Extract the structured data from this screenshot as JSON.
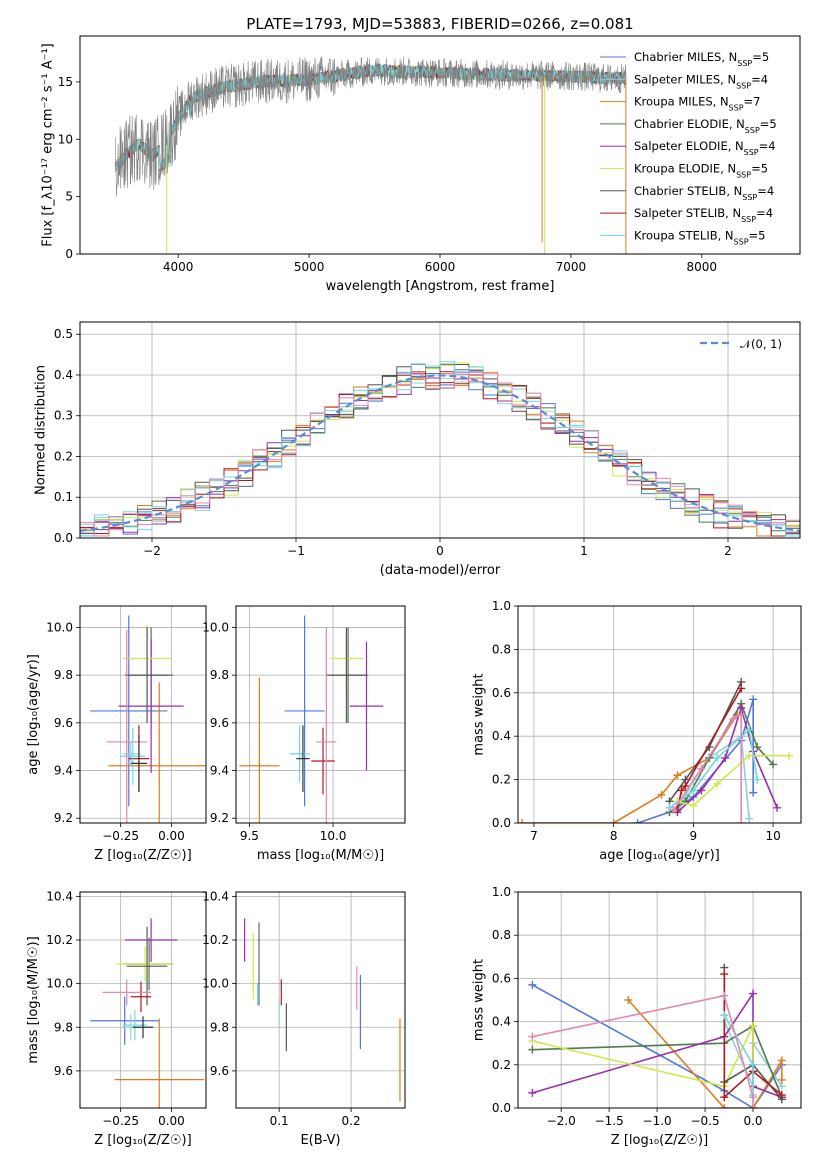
{
  "figure_title": "PLATE=1793, MJD=53883, FIBERID=0266, z=0.081",
  "colors": {
    "chabrier_miles": "#4f79d9",
    "salpeter_miles": "#8fd0d8",
    "kroupa_miles": "#e07b20",
    "chabrier_elodie": "#4f7a4f",
    "salpeter_elodie": "#9a2fae",
    "kroupa_elodie": "#cfe84a",
    "chabrier_stelib": "#555555",
    "salpeter_stelib": "#b01b1b",
    "kroupa_stelib": "#6fd8e0",
    "pink": "#e487b0",
    "data": "#808080",
    "normal": "#5b8bd4"
  },
  "chart_data": [
    {
      "type": "line",
      "name": "spectrum",
      "title": "PLATE=1793, MJD=53883, FIBERID=0266, z=0.081",
      "xlabel": "wavelength [Angstrom, rest frame]",
      "ylabel": "Flux [f_λ10⁻¹⁷ erg cm⁻² s⁻¹ A⁻¹]",
      "xlim": [
        3250,
        8750
      ],
      "ylim": [
        0,
        19
      ],
      "xticks": [
        "4000",
        "5000",
        "6000",
        "7000",
        "8000"
      ],
      "yticks": [
        "0",
        "5",
        "10",
        "15"
      ],
      "grid": false,
      "legend": "right",
      "continuum": {
        "x": [
          3520,
          3600,
          3700,
          3800,
          3900,
          4000,
          4100,
          4300,
          4600,
          5000,
          5500,
          6000,
          6500,
          7000,
          7300,
          7420
        ],
        "y": [
          7.5,
          8.6,
          9.6,
          8.6,
          9.6,
          11.8,
          13.6,
          14.4,
          15.0,
          15.2,
          16.0,
          15.8,
          15.6,
          15.5,
          15.3,
          15.3
        ]
      },
      "series": [
        {
          "name": "Chabrier MILES, N_SSP=5",
          "color": "#4f79d9"
        },
        {
          "name": "Salpeter MILES, N_SSP=4",
          "color": "#8fd0d8"
        },
        {
          "name": "Kroupa MILES, N_SSP=7",
          "color": "#e07b20"
        },
        {
          "name": "Chabrier ELODIE, N_SSP=5",
          "color": "#4f7a4f"
        },
        {
          "name": "Salpeter ELODIE, N_SSP=4",
          "color": "#9a2fae"
        },
        {
          "name": "Kroupa ELODIE, N_SSP=5",
          "color": "#cfe84a"
        },
        {
          "name": "Chabrier STELIB, N_SSP=4",
          "color": "#555555"
        },
        {
          "name": "Salpeter STELIB, N_SSP=4",
          "color": "#b01b1b"
        },
        {
          "name": "Kroupa STELIB, N_SSP=5",
          "color": "#6fd8e0"
        }
      ]
    },
    {
      "type": "line",
      "name": "residual-histogram",
      "xlabel": "(data-model)/error",
      "ylabel": "Normed distribution",
      "xlim": [
        -2.5,
        2.5
      ],
      "ylim": [
        0,
        0.53
      ],
      "xticks": [
        "−2",
        "−1",
        "0",
        "1",
        "2"
      ],
      "yticks": [
        "0.0",
        "0.1",
        "0.2",
        "0.3",
        "0.4",
        "0.5"
      ],
      "grid": true,
      "legend": "top-right",
      "legend_label": "𝒩(0, 1)",
      "bins": {
        "start": -2.5,
        "width": 0.1
      }
    },
    {
      "type": "scatter",
      "name": "age-vs-z",
      "xlabel": "Z [log₁₀(Z/Z☉)]",
      "ylabel": "age  [log₁₀(age/yr)]",
      "xlim": [
        -0.45,
        0.17
      ],
      "ylim": [
        9.18,
        10.09
      ],
      "xticks": [
        "−0.25",
        "0.00"
      ],
      "yticks": [
        "9.2",
        "9.4",
        "9.6",
        "9.8",
        "10.0"
      ],
      "grid": true,
      "points": [
        {
          "x": -0.21,
          "y": 9.65,
          "xerr": 0.19,
          "yerr": 0.4,
          "color": "#4f79d9"
        },
        {
          "x": -0.2,
          "y": 9.47,
          "xerr": 0.04,
          "yerr": 0.05,
          "color": "#8fd0d8"
        },
        {
          "x": -0.06,
          "y": 9.42,
          "xerr": 0.25,
          "yerr": 0.35,
          "color": "#e07b20"
        },
        {
          "x": -0.1,
          "y": 9.8,
          "xerr": 0.11,
          "yerr": 0.2,
          "color": "#4f7a4f"
        },
        {
          "x": -0.1,
          "y": 9.67,
          "xerr": 0.16,
          "yerr": 0.28,
          "color": "#9a2fae"
        },
        {
          "x": -0.12,
          "y": 9.87,
          "xerr": 0.12,
          "yerr": 0.14,
          "color": "#cfe84a"
        },
        {
          "x": -0.12,
          "y": 9.8,
          "xerr": 0.11,
          "yerr": 0.2,
          "color": "#555555"
        },
        {
          "x": -0.16,
          "y": 9.45,
          "xerr": 0.05,
          "yerr": 0.14,
          "color": "#b01b1b"
        },
        {
          "x": -0.19,
          "y": 9.46,
          "xerr": 0.06,
          "yerr": 0.12,
          "color": "#6fd8e0"
        },
        {
          "x": -0.22,
          "y": 9.52,
          "xerr": 0.1,
          "yerr": 0.47,
          "color": "#e487b0"
        },
        {
          "x": -0.16,
          "y": 9.43,
          "xerr": 0.04,
          "yerr": 0.12,
          "color": "#333333"
        }
      ]
    },
    {
      "type": "scatter",
      "name": "age-vs-mass",
      "xlabel": "mass [log₁₀(M/M☉)]",
      "ylabel": "",
      "xlim": [
        9.42,
        10.43
      ],
      "ylim": [
        9.18,
        10.09
      ],
      "xticks": [
        "9.5",
        "10.0"
      ],
      "yticks": [
        "9.2",
        "9.4",
        "9.6",
        "9.8",
        "10.0"
      ],
      "grid": true,
      "points": [
        {
          "x": 9.83,
          "y": 9.65,
          "xerr": 0.12,
          "yerr": 0.4,
          "color": "#4f79d9"
        },
        {
          "x": 9.8,
          "y": 9.47,
          "xerr": 0.06,
          "yerr": 0.05,
          "color": "#8fd0d8"
        },
        {
          "x": 9.56,
          "y": 9.42,
          "xerr": 0.12,
          "yerr": 0.37,
          "color": "#e07b20"
        },
        {
          "x": 10.09,
          "y": 9.8,
          "xerr": 0.12,
          "yerr": 0.2,
          "color": "#4f7a4f"
        },
        {
          "x": 10.2,
          "y": 9.67,
          "xerr": 0.1,
          "yerr": 0.27,
          "color": "#9a2fae"
        },
        {
          "x": 10.08,
          "y": 9.87,
          "xerr": 0.1,
          "yerr": 0.13,
          "color": "#cfe84a"
        },
        {
          "x": 10.08,
          "y": 9.8,
          "xerr": 0.12,
          "yerr": 0.2,
          "color": "#555555"
        },
        {
          "x": 9.94,
          "y": 9.44,
          "xerr": 0.07,
          "yerr": 0.14,
          "color": "#b01b1b"
        },
        {
          "x": 9.8,
          "y": 9.47,
          "xerr": 0.05,
          "yerr": 0.12,
          "color": "#6fd8e0"
        },
        {
          "x": 9.96,
          "y": 9.52,
          "xerr": 0.06,
          "yerr": 0.48,
          "color": "#e487b0"
        },
        {
          "x": 9.82,
          "y": 9.45,
          "xerr": 0.04,
          "yerr": 0.14,
          "color": "#333333"
        }
      ]
    },
    {
      "type": "line",
      "name": "mass-weight-vs-age",
      "xlabel": "age  [log₁₀(age/yr)]",
      "ylabel": "mass weight",
      "xlim": [
        6.8,
        10.35
      ],
      "ylim": [
        0,
        1
      ],
      "xticks": [
        "7",
        "8",
        "9",
        "10"
      ],
      "yticks": [
        "0.0",
        "0.2",
        "0.4",
        "0.6",
        "0.8",
        "1.0"
      ],
      "grid": true,
      "series": [
        {
          "color": "#4f79d9",
          "x": [
            8.3,
            8.7,
            9.0,
            9.6,
            9.75,
            9.75
          ],
          "y": [
            0.0,
            0.05,
            0.12,
            0.38,
            0.57,
            0.14
          ]
        },
        {
          "color": "#8fd0d8",
          "x": [
            8.8,
            9.0,
            9.2,
            9.6,
            9.7
          ],
          "y": [
            0.05,
            0.2,
            0.3,
            0.4,
            0.02
          ]
        },
        {
          "color": "#e07b20",
          "x": [
            6.85,
            8.0,
            8.6,
            8.8,
            9.2,
            9.55
          ],
          "y": [
            0.0,
            0.0,
            0.13,
            0.22,
            0.3,
            0.5
          ]
        },
        {
          "color": "#4f7a4f",
          "x": [
            8.7,
            8.9,
            9.2,
            9.6,
            9.8,
            10.0
          ],
          "y": [
            0.05,
            0.1,
            0.3,
            0.55,
            0.35,
            0.27
          ]
        },
        {
          "color": "#9a2fae",
          "x": [
            8.8,
            9.1,
            9.4,
            9.6,
            9.75,
            10.05
          ],
          "y": [
            0.05,
            0.15,
            0.3,
            0.53,
            0.33,
            0.07
          ]
        },
        {
          "color": "#cfe84a",
          "x": [
            8.8,
            9.0,
            9.3,
            9.7,
            10.2
          ],
          "y": [
            0.1,
            0.08,
            0.18,
            0.31,
            0.31
          ]
        },
        {
          "color": "#555555",
          "x": [
            8.7,
            8.9,
            9.2,
            9.6
          ],
          "y": [
            0.1,
            0.2,
            0.35,
            0.65
          ]
        },
        {
          "color": "#b01b1b",
          "x": [
            8.8,
            8.85,
            8.9,
            9.6
          ],
          "y": [
            0.06,
            0.15,
            0.17,
            0.62
          ]
        },
        {
          "color": "#6fd8e0",
          "x": [
            8.7,
            9.0,
            9.3,
            9.7,
            9.8
          ],
          "y": [
            0.07,
            0.15,
            0.3,
            0.43,
            0.2
          ]
        },
        {
          "color": "#e487b0",
          "x": [
            8.75,
            9.1,
            9.5,
            9.6,
            9.6
          ],
          "y": [
            0.06,
            0.25,
            0.48,
            0.5,
            0.0
          ]
        }
      ]
    },
    {
      "type": "scatter",
      "name": "mass-vs-z",
      "xlabel": "Z [log₁₀(Z/Z☉)]",
      "ylabel": "mass [log₁₀(M/M☉)]",
      "xlim": [
        -0.45,
        0.17
      ],
      "ylim": [
        9.43,
        10.42
      ],
      "xticks": [
        "−0.25",
        "0.00"
      ],
      "yticks": [
        "9.6",
        "9.8",
        "10.0",
        "10.2",
        "10.4"
      ],
      "grid": true,
      "points": [
        {
          "x": -0.23,
          "y": 9.83,
          "xerr": 0.17,
          "yerr": 0.11,
          "color": "#4f79d9"
        },
        {
          "x": -0.2,
          "y": 9.8,
          "xerr": 0.04,
          "yerr": 0.06,
          "color": "#8fd0d8"
        },
        {
          "x": -0.06,
          "y": 9.56,
          "xerr": 0.22,
          "yerr": 0.28,
          "color": "#e07b20"
        },
        {
          "x": -0.11,
          "y": 10.09,
          "xerr": 0.12,
          "yerr": 0.12,
          "color": "#4f7a4f"
        },
        {
          "x": -0.1,
          "y": 10.2,
          "xerr": 0.13,
          "yerr": 0.1,
          "color": "#9a2fae"
        },
        {
          "x": -0.13,
          "y": 10.09,
          "xerr": 0.14,
          "yerr": 0.08,
          "color": "#cfe84a"
        },
        {
          "x": -0.12,
          "y": 10.08,
          "xerr": 0.1,
          "yerr": 0.18,
          "color": "#555555"
        },
        {
          "x": -0.15,
          "y": 9.94,
          "xerr": 0.05,
          "yerr": 0.07,
          "color": "#b01b1b"
        },
        {
          "x": -0.18,
          "y": 9.81,
          "xerr": 0.06,
          "yerr": 0.07,
          "color": "#6fd8e0"
        },
        {
          "x": -0.22,
          "y": 9.96,
          "xerr": 0.12,
          "yerr": 0.06,
          "color": "#e487b0"
        },
        {
          "x": -0.14,
          "y": 9.8,
          "xerr": 0.05,
          "yerr": 0.05,
          "color": "#333333"
        }
      ]
    },
    {
      "type": "scatter",
      "name": "mass-vs-ebv",
      "xlabel": "E(B-V)",
      "ylabel": "",
      "xlim": [
        0.04,
        0.275
      ],
      "ylim": [
        9.43,
        10.42
      ],
      "xticks": [
        "0.1",
        "0.2"
      ],
      "yticks": [
        "9.6",
        "9.8",
        "10.0",
        "10.2",
        "10.4"
      ],
      "grid": true,
      "points": [
        {
          "x": 0.213,
          "y": 9.87,
          "yerr": 0.17,
          "color": "#4f79d9"
        },
        {
          "x": 0.1,
          "y": 9.87,
          "yerr": 0.06,
          "color": "#8fd0d8"
        },
        {
          "x": 0.268,
          "y": 9.65,
          "yerr": 0.19,
          "color": "#e07b20"
        },
        {
          "x": 0.072,
          "y": 10.09,
          "yerr": 0.19,
          "color": "#4f7a4f"
        },
        {
          "x": 0.052,
          "y": 10.2,
          "yerr": 0.1,
          "color": "#9a2fae"
        },
        {
          "x": 0.064,
          "y": 10.08,
          "yerr": 0.15,
          "color": "#cfe84a"
        },
        {
          "x": 0.11,
          "y": 9.8,
          "yerr": 0.11,
          "color": "#555555"
        },
        {
          "x": 0.103,
          "y": 9.96,
          "yerr": 0.06,
          "color": "#b01b1b"
        },
        {
          "x": 0.07,
          "y": 9.95,
          "yerr": 0.05,
          "color": "#6fd8e0"
        },
        {
          "x": 0.208,
          "y": 9.98,
          "yerr": 0.1,
          "color": "#e487b0"
        }
      ]
    },
    {
      "type": "line",
      "name": "mass-weight-vs-z",
      "xlabel": "Z [log₁₀(Z/Z☉)]",
      "ylabel": "mass weight",
      "xlim": [
        -2.45,
        0.5
      ],
      "ylim": [
        0,
        1
      ],
      "xticks": [
        "−2.0",
        "−1.5",
        "−1.0",
        "−0.5",
        "0.0"
      ],
      "yticks": [
        "0.0",
        "0.2",
        "0.4",
        "0.6",
        "0.8",
        "1.0"
      ],
      "grid": true,
      "series": [
        {
          "color": "#4f79d9",
          "x": [
            -2.3,
            -0.3,
            0.0,
            0.3
          ],
          "y": [
            0.57,
            0.08,
            0.0,
            0.2
          ]
        },
        {
          "color": "#8fd0d8",
          "x": [
            -0.3,
            0.0,
            0.0,
            0.3
          ],
          "y": [
            0.4,
            0.1,
            0.3,
            0.1
          ]
        },
        {
          "color": "#e07b20",
          "x": [
            -1.3,
            -0.3,
            0.0,
            0.3,
            0.3
          ],
          "y": [
            0.5,
            0.0,
            0.0,
            0.22,
            0.13
          ]
        },
        {
          "color": "#4f7a4f",
          "x": [
            -2.3,
            -0.3,
            0.0,
            0.3
          ],
          "y": [
            0.27,
            0.3,
            0.38,
            0.05
          ]
        },
        {
          "color": "#9a2fae",
          "x": [
            -2.3,
            -0.3,
            0.0,
            0.0,
            0.3
          ],
          "y": [
            0.07,
            0.33,
            0.53,
            0.1,
            0.05
          ]
        },
        {
          "color": "#cfe84a",
          "x": [
            -2.3,
            -0.3,
            0.0,
            0.0
          ],
          "y": [
            0.31,
            0.1,
            0.38,
            0.05
          ]
        },
        {
          "color": "#555555",
          "x": [
            -0.3,
            -0.3,
            0.0,
            0.3
          ],
          "y": [
            0.65,
            0.12,
            0.2,
            0.04
          ]
        },
        {
          "color": "#b01b1b",
          "x": [
            -0.3,
            -0.3,
            0.0,
            0.3
          ],
          "y": [
            0.62,
            0.05,
            0.17,
            0.06
          ]
        },
        {
          "color": "#6fd8e0",
          "x": [
            -0.3,
            0.0,
            0.0
          ],
          "y": [
            0.43,
            0.2,
            0.06
          ]
        },
        {
          "color": "#e487b0",
          "x": [
            -2.3,
            -0.3,
            0.0,
            0.0
          ],
          "y": [
            0.33,
            0.52,
            0.05,
            0.0
          ]
        }
      ]
    }
  ]
}
